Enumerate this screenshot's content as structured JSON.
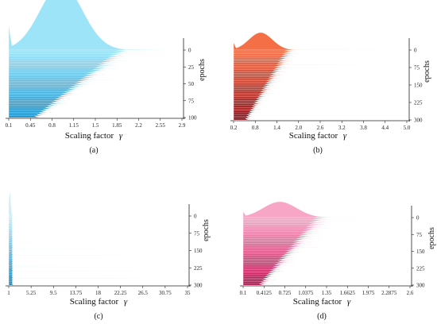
{
  "chart_data": [
    {
      "type": "area",
      "label": "(a)",
      "xlabel": "Scaling factor",
      "xlabel_symbol": "γ",
      "ylabel": "epochs",
      "x_ticks": [
        "0.1",
        "0.45",
        "0.8",
        "1.15",
        "1.5",
        "1.85",
        "2.2",
        "2.55",
        "2.9"
      ],
      "xlim": [
        0.1,
        2.9
      ],
      "y_ticks": [
        "0",
        "25",
        "50",
        "75",
        "100"
      ],
      "ylim": [
        0,
        100
      ],
      "n_epochs": 100,
      "color_old": "#1a8fc6",
      "color_new": "#9ee4f8",
      "peak_x": 0.95,
      "peak_height": 0.92,
      "tail_to": 2.0
    },
    {
      "type": "area",
      "label": "(b)",
      "xlabel": "Scaling factor",
      "xlabel_symbol": "γ",
      "ylabel": "epochs",
      "x_ticks": [
        "0.2",
        "0.8",
        "1.4",
        "2.0",
        "2.6",
        "3.2",
        "3.8",
        "4.4",
        "5.0"
      ],
      "xlim": [
        0.2,
        5.0
      ],
      "y_ticks": [
        "0",
        "75",
        "150",
        "225",
        "300"
      ],
      "ylim": [
        0,
        300
      ],
      "n_epochs": 300,
      "color_old": "#8b0a14",
      "color_new": "#f46f45",
      "peak_x": 0.95,
      "peak_height": 0.22,
      "tail_to": 2.0
    },
    {
      "type": "area",
      "label": "(c)",
      "xlabel": "Scaling factor",
      "xlabel_symbol": "γ",
      "ylabel": "epochs",
      "x_ticks": [
        "1",
        "5.25",
        "9.5",
        "13.75",
        "18",
        "22.25",
        "26.5",
        "30.75",
        "35"
      ],
      "xlim": [
        1,
        35
      ],
      "y_ticks": [
        "0",
        "75",
        "150",
        "225",
        "300"
      ],
      "ylim": [
        0,
        300
      ],
      "n_epochs": 300,
      "color_old": "#1385bd",
      "color_new": "#cdeef9",
      "peak_x": 1.2,
      "peak_height": 0.3,
      "tail_to": 2.0
    },
    {
      "type": "area",
      "label": "(d)",
      "xlabel": "Scaling factor",
      "xlabel_symbol": "γ",
      "ylabel": "epochs",
      "x_ticks": [
        "0.1",
        "0.4125",
        "0.725",
        "1.0375",
        "1.35",
        "1.6625",
        "1.975",
        "2.2875",
        "2.6"
      ],
      "xlim": [
        0.1,
        2.6
      ],
      "y_ticks": [
        "0",
        "75",
        "150",
        "225",
        "300"
      ],
      "ylim": [
        0,
        300
      ],
      "n_epochs": 300,
      "color_old": "#b80b4c",
      "color_new": "#f8a6c6",
      "peak_x": 0.65,
      "peak_height": 0.2,
      "tail_to": 1.5
    }
  ]
}
